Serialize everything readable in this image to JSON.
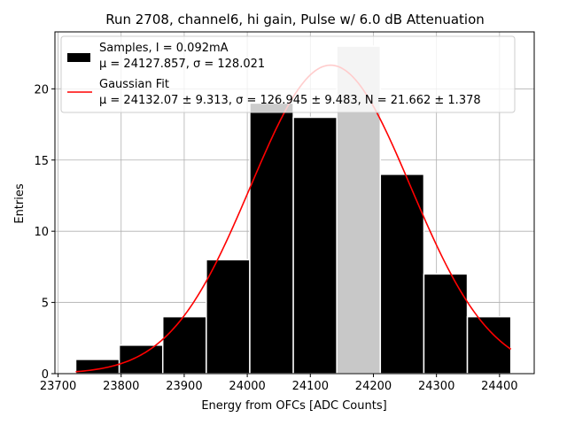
{
  "chart_data": {
    "type": "bar",
    "title": "Run 2708, channel6, hi gain, Pulse w/ 6.0 dB Attenuation",
    "xlabel": "Energy from OFCs [ADC Counts]",
    "ylabel": "Entries",
    "xlim": [
      23695,
      24455
    ],
    "ylim": [
      0,
      24
    ],
    "xticks": [
      23700,
      23800,
      23900,
      24000,
      24100,
      24200,
      24300,
      24400
    ],
    "yticks": [
      0,
      5,
      10,
      15,
      20
    ],
    "grid": true,
    "legend_position": "top-left",
    "bin_edges": [
      23728,
      23797,
      23866,
      23935,
      24004,
      24073,
      24142,
      24211,
      24280,
      24349,
      24418
    ],
    "series": [
      {
        "name": "Samples, I = 0.092mA",
        "stats": "μ = 24127.857, σ = 128.021",
        "values": [
          1,
          2,
          4,
          8,
          19,
          18,
          23,
          14,
          7,
          4
        ],
        "color": "#000000",
        "highlight_bar_index": 6,
        "highlight_color": "#c8c8c8"
      },
      {
        "name": "Gaussian Fit",
        "stats": "μ = 24132.07 ± 9.313, σ = 126.945 ± 9.483, N = 21.662 ± 1.378",
        "type": "line",
        "mu": 24132.07,
        "sigma": 126.945,
        "N": 21.662,
        "x_range": [
          23728,
          24418
        ],
        "color": "#ff0000"
      }
    ]
  }
}
